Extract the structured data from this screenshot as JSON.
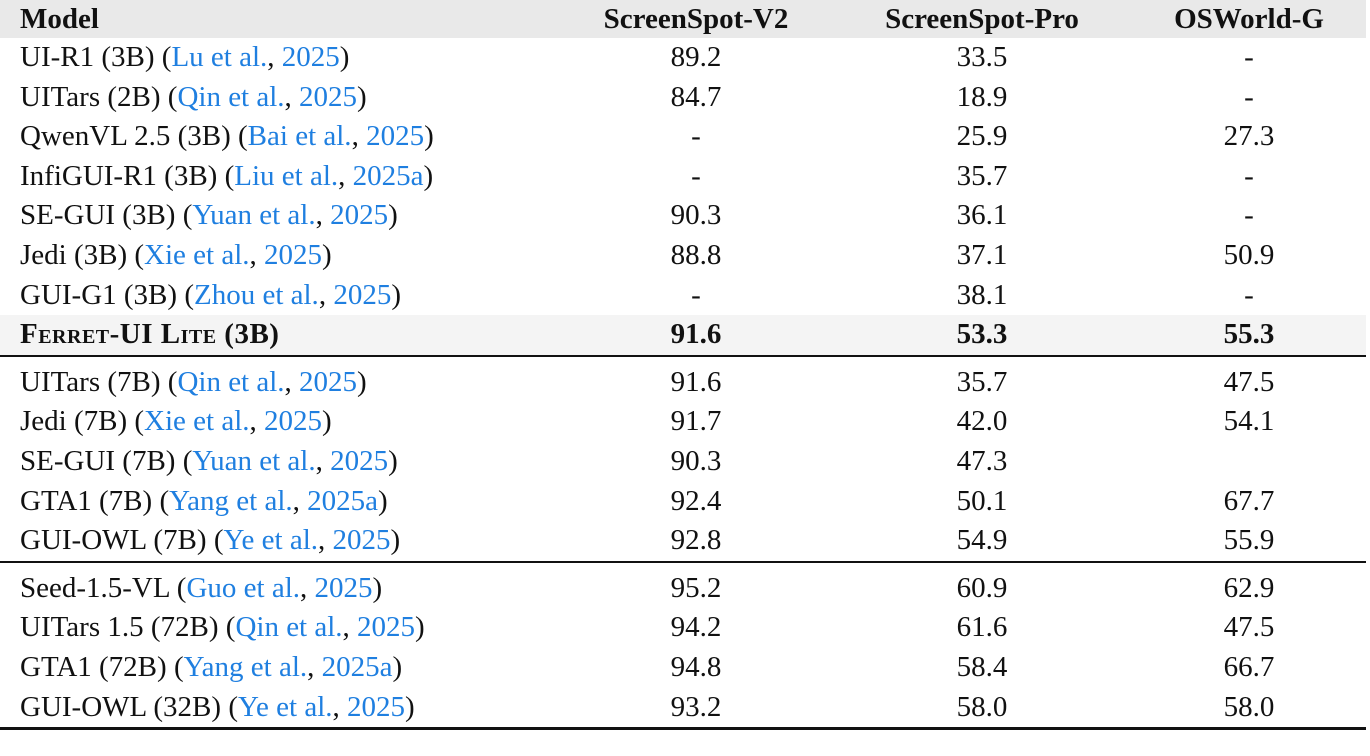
{
  "table": {
    "header_bg": "#e9e9e9",
    "highlight_bg": "#f4f4f4",
    "citation_color": "#1f7fe0",
    "columns": [
      "Model",
      "ScreenSpot-V2",
      "ScreenSpot-Pro",
      "OSWorld-G"
    ],
    "groups": [
      {
        "rows": [
          {
            "model": "UI-R1 (3B)",
            "cite_author": "Lu et al.",
            "cite_year": "2025",
            "v2": "89.2",
            "pro": "33.5",
            "osw": "-"
          },
          {
            "model": "UITars (2B)",
            "cite_author": "Qin et al.",
            "cite_year": "2025",
            "v2": "84.7",
            "pro": "18.9",
            "osw": "-"
          },
          {
            "model": "QwenVL 2.5 (3B)",
            "cite_author": "Bai et al.",
            "cite_year": "2025",
            "v2": "-",
            "pro": "25.9",
            "osw": "27.3"
          },
          {
            "model": "InfiGUI-R1 (3B)",
            "cite_author": "Liu et al.",
            "cite_year": "2025a",
            "v2": "-",
            "pro": "35.7",
            "osw": "-"
          },
          {
            "model": "SE-GUI (3B)",
            "cite_author": "Yuan et al.",
            "cite_year": "2025",
            "v2": "90.3",
            "pro": "36.1",
            "osw": "-"
          },
          {
            "model": "Jedi (3B)",
            "cite_author": "Xie et al.",
            "cite_year": "2025",
            "v2": "88.8",
            "pro": "37.1",
            "osw": "50.9"
          },
          {
            "model": "GUI-G1 (3B)",
            "cite_author": "Zhou et al.",
            "cite_year": "2025",
            "v2": "-",
            "pro": "38.1",
            "osw": "-"
          },
          {
            "model": "Ferret-UI Lite (3B)",
            "cite_author": "",
            "cite_year": "",
            "v2": "91.6",
            "pro": "53.3",
            "osw": "55.3",
            "highlight": true
          }
        ]
      },
      {
        "rows": [
          {
            "model": "UITars (7B)",
            "cite_author": "Qin et al.",
            "cite_year": "2025",
            "v2": "91.6",
            "pro": "35.7",
            "osw": "47.5"
          },
          {
            "model": "Jedi (7B)",
            "cite_author": "Xie et al.",
            "cite_year": "2025",
            "v2": "91.7",
            "pro": "42.0",
            "osw": "54.1"
          },
          {
            "model": "SE-GUI (7B)",
            "cite_author": "Yuan et al.",
            "cite_year": "2025",
            "v2": "90.3",
            "pro": "47.3",
            "osw": ""
          },
          {
            "model": "GTA1 (7B)",
            "cite_author": "Yang et al.",
            "cite_year": "2025a",
            "v2": "92.4",
            "pro": "50.1",
            "osw": "67.7"
          },
          {
            "model": "GUI-OWL (7B)",
            "cite_author": "Ye et al.",
            "cite_year": "2025",
            "v2": "92.8",
            "pro": "54.9",
            "osw": "55.9"
          }
        ]
      },
      {
        "rows": [
          {
            "model": "Seed-1.5-VL",
            "cite_author": "Guo et al.",
            "cite_year": "2025",
            "v2": "95.2",
            "pro": "60.9",
            "osw": "62.9"
          },
          {
            "model": "UITars 1.5 (72B)",
            "cite_author": "Qin et al.",
            "cite_year": "2025",
            "v2": "94.2",
            "pro": "61.6",
            "osw": "47.5"
          },
          {
            "model": "GTA1 (72B)",
            "cite_author": "Yang et al.",
            "cite_year": "2025a",
            "v2": "94.8",
            "pro": "58.4",
            "osw": "66.7"
          },
          {
            "model": "GUI-OWL (32B)",
            "cite_author": "Ye et al.",
            "cite_year": "2025",
            "v2": "93.2",
            "pro": "58.0",
            "osw": "58.0"
          }
        ]
      }
    ]
  }
}
